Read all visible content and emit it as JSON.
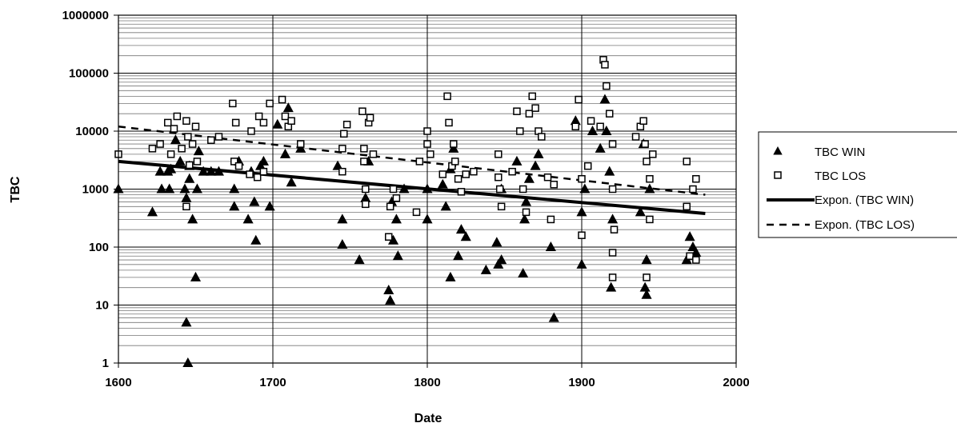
{
  "chart_data": {
    "type": "scatter",
    "xlabel": "Date",
    "ylabel": "TBC",
    "x_scale": "linear",
    "y_scale": "log",
    "xlim": [
      1600,
      2000
    ],
    "ylim": [
      1,
      1000000
    ],
    "x_ticks": [
      "1600",
      "1700",
      "1800",
      "1900",
      "2000"
    ],
    "y_ticks": [
      "1",
      "10",
      "100",
      "1000",
      "10000",
      "100000",
      "1000000"
    ],
    "grid": true,
    "legend_position": "right",
    "legend": [
      "TBC WIN",
      "TBC LOS",
      "Expon. (TBC WIN)",
      "Expon. (TBC LOS)"
    ],
    "series": [
      {
        "name": "TBC WIN",
        "marker": "triangle",
        "color": "#000000",
        "points": [
          [
            1600,
            1000
          ],
          [
            1622,
            400
          ],
          [
            1627,
            2000
          ],
          [
            1628,
            1000
          ],
          [
            1632,
            2000
          ],
          [
            1633,
            1000
          ],
          [
            1634,
            2200
          ],
          [
            1637,
            7000
          ],
          [
            1640,
            3000
          ],
          [
            1643,
            1000
          ],
          [
            1644,
            700
          ],
          [
            1644,
            5
          ],
          [
            1645,
            1
          ],
          [
            1646,
            2500
          ],
          [
            1646,
            1500
          ],
          [
            1648,
            300
          ],
          [
            1650,
            30
          ],
          [
            1651,
            1000
          ],
          [
            1652,
            4500
          ],
          [
            1655,
            2000
          ],
          [
            1660,
            2000
          ],
          [
            1665,
            2000
          ],
          [
            1675,
            1000
          ],
          [
            1675,
            500
          ],
          [
            1678,
            3000
          ],
          [
            1684,
            300
          ],
          [
            1686,
            2000
          ],
          [
            1688,
            600
          ],
          [
            1689,
            130
          ],
          [
            1692,
            2500
          ],
          [
            1694,
            3000
          ],
          [
            1698,
            500
          ],
          [
            1703,
            13000
          ],
          [
            1708,
            4000
          ],
          [
            1710,
            25000
          ],
          [
            1712,
            1300
          ],
          [
            1718,
            5000
          ],
          [
            1742,
            2500
          ],
          [
            1745,
            300
          ],
          [
            1745,
            110
          ],
          [
            1756,
            60
          ],
          [
            1760,
            700
          ],
          [
            1762,
            3000
          ],
          [
            1775,
            18
          ],
          [
            1776,
            12
          ],
          [
            1777,
            600
          ],
          [
            1778,
            130
          ],
          [
            1780,
            300
          ],
          [
            1781,
            70
          ],
          [
            1785,
            1000
          ],
          [
            1800,
            300
          ],
          [
            1800,
            1000
          ],
          [
            1810,
            1200
          ],
          [
            1812,
            500
          ],
          [
            1815,
            30
          ],
          [
            1815,
            2200
          ],
          [
            1817,
            5000
          ],
          [
            1820,
            70
          ],
          [
            1822,
            200
          ],
          [
            1825,
            150
          ],
          [
            1838,
            40
          ],
          [
            1845,
            120
          ],
          [
            1846,
            50
          ],
          [
            1848,
            60
          ],
          [
            1848,
            1000
          ],
          [
            1858,
            3000
          ],
          [
            1862,
            35
          ],
          [
            1863,
            300
          ],
          [
            1864,
            600
          ],
          [
            1866,
            1500
          ],
          [
            1870,
            2500
          ],
          [
            1872,
            4000
          ],
          [
            1880,
            100
          ],
          [
            1882,
            6
          ],
          [
            1896,
            15000
          ],
          [
            1900,
            50
          ],
          [
            1900,
            400
          ],
          [
            1902,
            1000
          ],
          [
            1907,
            10000
          ],
          [
            1912,
            5000
          ],
          [
            1915,
            35000
          ],
          [
            1916,
            10000
          ],
          [
            1918,
            2000
          ],
          [
            1919,
            20
          ],
          [
            1920,
            300
          ],
          [
            1938,
            400
          ],
          [
            1940,
            6000
          ],
          [
            1941,
            20
          ],
          [
            1942,
            60
          ],
          [
            1942,
            15
          ],
          [
            1944,
            1000
          ],
          [
            1968,
            60
          ],
          [
            1970,
            150
          ],
          [
            1972,
            100
          ],
          [
            1974,
            80
          ]
        ]
      },
      {
        "name": "TBC LOS",
        "marker": "square",
        "color": "#000000",
        "points": [
          [
            1600,
            4000
          ],
          [
            1622,
            5000
          ],
          [
            1627,
            6000
          ],
          [
            1632,
            14000
          ],
          [
            1634,
            4000
          ],
          [
            1636,
            11000
          ],
          [
            1638,
            18000
          ],
          [
            1641,
            5000
          ],
          [
            1644,
            15000
          ],
          [
            1644,
            500
          ],
          [
            1645,
            8000
          ],
          [
            1646,
            2600
          ],
          [
            1648,
            6000
          ],
          [
            1650,
            12000
          ],
          [
            1651,
            3000
          ],
          [
            1660,
            7000
          ],
          [
            1665,
            8000
          ],
          [
            1674,
            30000
          ],
          [
            1675,
            3000
          ],
          [
            1676,
            14000
          ],
          [
            1678,
            2500
          ],
          [
            1685,
            1800
          ],
          [
            1686,
            10000
          ],
          [
            1690,
            1600
          ],
          [
            1691,
            18000
          ],
          [
            1694,
            14000
          ],
          [
            1694,
            2000
          ],
          [
            1698,
            30000
          ],
          [
            1706,
            35000
          ],
          [
            1708,
            18000
          ],
          [
            1710,
            12000
          ],
          [
            1712,
            15000
          ],
          [
            1718,
            6000
          ],
          [
            1745,
            5000
          ],
          [
            1745,
            2000
          ],
          [
            1746,
            9000
          ],
          [
            1748,
            13000
          ],
          [
            1758,
            22000
          ],
          [
            1759,
            5000
          ],
          [
            1759,
            3000
          ],
          [
            1760,
            1000
          ],
          [
            1760,
            550
          ],
          [
            1762,
            14000
          ],
          [
            1763,
            17000
          ],
          [
            1765,
            4000
          ],
          [
            1775,
            150
          ],
          [
            1776,
            500
          ],
          [
            1778,
            1000
          ],
          [
            1780,
            700
          ],
          [
            1793,
            400
          ],
          [
            1795,
            3000
          ],
          [
            1800,
            10000
          ],
          [
            1800,
            6000
          ],
          [
            1802,
            4000
          ],
          [
            1810,
            1800
          ],
          [
            1813,
            40000
          ],
          [
            1814,
            14000
          ],
          [
            1816,
            2500
          ],
          [
            1817,
            6000
          ],
          [
            1818,
            3000
          ],
          [
            1820,
            1500
          ],
          [
            1822,
            900
          ],
          [
            1825,
            1800
          ],
          [
            1830,
            2000
          ],
          [
            1846,
            4000
          ],
          [
            1846,
            1600
          ],
          [
            1847,
            1000
          ],
          [
            1848,
            500
          ],
          [
            1855,
            2000
          ],
          [
            1858,
            22000
          ],
          [
            1860,
            10000
          ],
          [
            1862,
            1000
          ],
          [
            1864,
            400
          ],
          [
            1866,
            20000
          ],
          [
            1868,
            40000
          ],
          [
            1870,
            25000
          ],
          [
            1872,
            10000
          ],
          [
            1874,
            8000
          ],
          [
            1878,
            1600
          ],
          [
            1880,
            300
          ],
          [
            1882,
            1200
          ],
          [
            1896,
            12000
          ],
          [
            1898,
            35000
          ],
          [
            1900,
            1500
          ],
          [
            1900,
            160
          ],
          [
            1904,
            2500
          ],
          [
            1906,
            15000
          ],
          [
            1912,
            12000
          ],
          [
            1914,
            170000
          ],
          [
            1915,
            140000
          ],
          [
            1916,
            60000
          ],
          [
            1918,
            20000
          ],
          [
            1920,
            6000
          ],
          [
            1920,
            1000
          ],
          [
            1920,
            80
          ],
          [
            1920,
            30
          ],
          [
            1921,
            200
          ],
          [
            1935,
            8000
          ],
          [
            1938,
            12000
          ],
          [
            1940,
            15000
          ],
          [
            1941,
            6000
          ],
          [
            1942,
            3000
          ],
          [
            1942,
            30
          ],
          [
            1944,
            1500
          ],
          [
            1944,
            300
          ],
          [
            1946,
            4000
          ],
          [
            1968,
            3000
          ],
          [
            1968,
            500
          ],
          [
            1970,
            70
          ],
          [
            1972,
            1000
          ],
          [
            1974,
            1500
          ],
          [
            1974,
            60
          ]
        ]
      },
      {
        "name": "Expon. (TBC WIN)",
        "line_style": "solid",
        "color": "#000000",
        "points": [
          [
            1600,
            3000
          ],
          [
            1980,
            380
          ]
        ]
      },
      {
        "name": "Expon. (TBC LOS)",
        "line_style": "dashed",
        "color": "#000000",
        "points": [
          [
            1600,
            12000
          ],
          [
            1980,
            800
          ]
        ]
      }
    ]
  }
}
